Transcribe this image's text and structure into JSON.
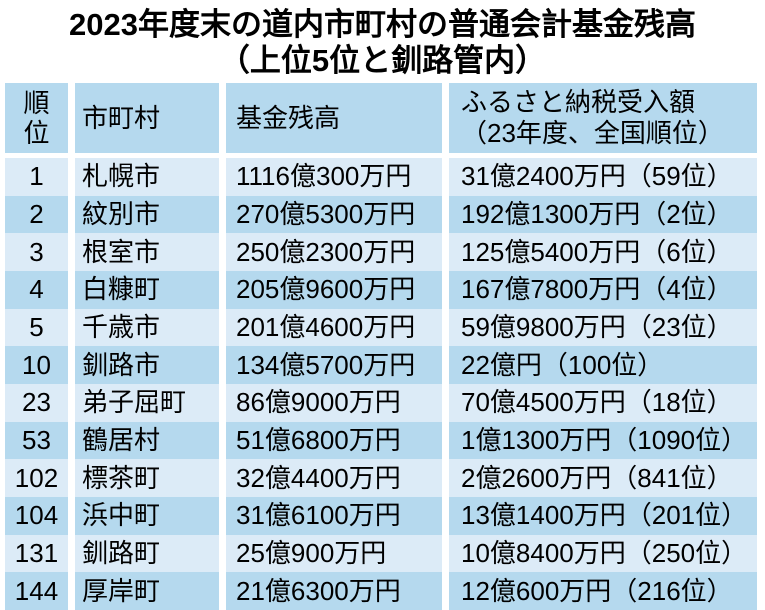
{
  "title": {
    "line1": "2023年度末の道内市町村の普通会計基金残高",
    "line2": "（上位5位と釧路管内）"
  },
  "table": {
    "header": {
      "rank": "順位",
      "municipality": "市町村",
      "fund_balance": "基金残高",
      "furusato_line1": "ふるさと納税受入額",
      "furusato_line2": "（23年度、全国順位）"
    },
    "rows": [
      {
        "rank": "1",
        "municipality": "札幌市",
        "fund_balance": "1116億300万円",
        "furusato": "31億2400万円（59位）"
      },
      {
        "rank": "2",
        "municipality": "紋別市",
        "fund_balance": "270億5300万円",
        "furusato": "192億1300万円（2位）"
      },
      {
        "rank": "3",
        "municipality": "根室市",
        "fund_balance": "250億2300万円",
        "furusato": "125億5400万円（6位）"
      },
      {
        "rank": "4",
        "municipality": "白糠町",
        "fund_balance": "205億9600万円",
        "furusato": "167億7800万円（4位）"
      },
      {
        "rank": "5",
        "municipality": "千歳市",
        "fund_balance": "201億4600万円",
        "furusato": "59億9800万円（23位）"
      },
      {
        "rank": "10",
        "municipality": "釧路市",
        "fund_balance": "134億5700万円",
        "furusato": "22億円（100位）"
      },
      {
        "rank": "23",
        "municipality": "弟子屈町",
        "fund_balance": "86億9000万円",
        "furusato": "70億4500万円（18位）"
      },
      {
        "rank": "53",
        "municipality": "鶴居村",
        "fund_balance": "51億6800万円",
        "furusato": "1億1300万円（1090位）"
      },
      {
        "rank": "102",
        "municipality": "標茶町",
        "fund_balance": "32億4400万円",
        "furusato": "2億2600万円（841位）"
      },
      {
        "rank": "104",
        "municipality": "浜中町",
        "fund_balance": "31億6100万円",
        "furusato": "13億1400万円（201位）"
      },
      {
        "rank": "131",
        "municipality": "釧路町",
        "fund_balance": "25億900万円",
        "furusato": "10億8400万円（250位）"
      },
      {
        "rank": "144",
        "municipality": "厚岸町",
        "fund_balance": "21億6300万円",
        "furusato": "12億600万円（216位）"
      }
    ]
  },
  "colors": {
    "band-blue": "#b5d9ee",
    "light-blue": "#dcebf7",
    "bg": "#ffffff",
    "text": "#000000"
  },
  "chart_data": {
    "type": "table",
    "title": "2023年度末の道内市町村の普通会計基金残高（上位5位と釧路管内）",
    "columns": [
      "順位",
      "市町村",
      "基金残高",
      "ふるさと納税受入額（23年度、全国順位）"
    ],
    "rows": [
      [
        "1",
        "札幌市",
        "1116億300万円",
        "31億2400万円（59位）"
      ],
      [
        "2",
        "紋別市",
        "270億5300万円",
        "192億1300万円（2位）"
      ],
      [
        "3",
        "根室市",
        "250億2300万円",
        "125億5400万円（6位）"
      ],
      [
        "4",
        "白糠町",
        "205億9600万円",
        "167億7800万円（4位）"
      ],
      [
        "5",
        "千歳市",
        "201億4600万円",
        "59億9800万円（23位）"
      ],
      [
        "10",
        "釧路市",
        "134億5700万円",
        "22億円（100位）"
      ],
      [
        "23",
        "弟子屈町",
        "86億9000万円",
        "70億4500万円（18位）"
      ],
      [
        "53",
        "鶴居村",
        "51億6800万円",
        "1億1300万円（1090位）"
      ],
      [
        "102",
        "標茶町",
        "32億4400万円",
        "2億2600万円（841位）"
      ],
      [
        "104",
        "浜中町",
        "31億6100万円",
        "13億1400万円（201位）"
      ],
      [
        "131",
        "釧路町",
        "25億900万円",
        "10億8400万円（250位）"
      ],
      [
        "144",
        "厚岸町",
        "21億6300万円",
        "12億600万円（216位）"
      ]
    ],
    "layout": {
      "striped": true,
      "header_color": "#b5d9ee",
      "odd_row_color": "#dcebf7",
      "even_row_color": "#b5d9ee"
    }
  }
}
